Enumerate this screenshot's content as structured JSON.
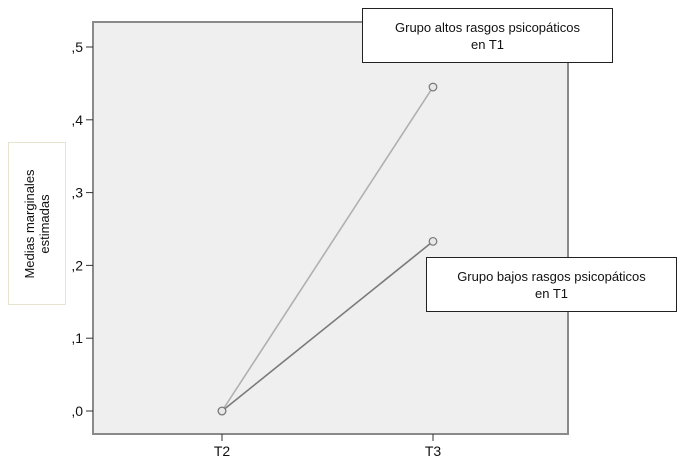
{
  "chart_data": {
    "type": "line",
    "title": "",
    "xlabel": "",
    "ylabel": "Medias marginales\nestimadas",
    "categories": [
      "T2",
      "T3"
    ],
    "ylim": [
      0,
      0.52
    ],
    "yticks": [
      0,
      0.1,
      0.2,
      0.3,
      0.4,
      0.5
    ],
    "ytick_labels": [
      ",0",
      ",1",
      ",2",
      ",3",
      ",4",
      ",5"
    ],
    "grid": false,
    "background": "#efefef",
    "series": [
      {
        "name": "Grupo altos rasgos psicopáticos\nen T1",
        "values": [
          0.0,
          0.445
        ],
        "color": "#b0b0b0"
      },
      {
        "name": "Grupo bajos rasgos psicopáticos\nen T1",
        "values": [
          0.0,
          0.233
        ],
        "color": "#7a7a7a"
      }
    ]
  }
}
